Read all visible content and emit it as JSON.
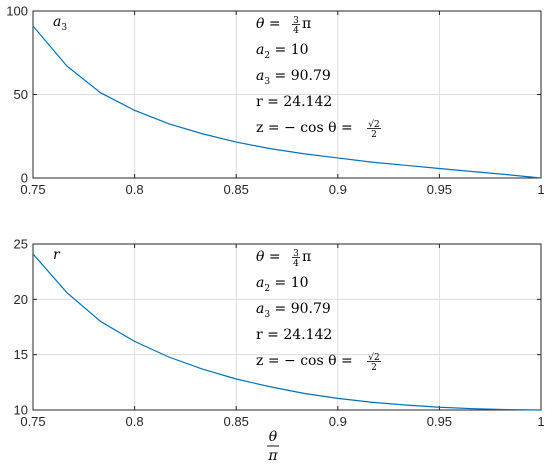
{
  "chart_data": [
    {
      "type": "line",
      "title": "",
      "xlabel": "",
      "ylabel": "",
      "xlim": [
        0.75,
        1
      ],
      "ylim": [
        0,
        100
      ],
      "grid": true,
      "x_ticks": [
        "0.75",
        "0.8",
        "0.85",
        "0.9",
        "0.95",
        "1"
      ],
      "y_ticks": [
        "0",
        "50",
        "100"
      ],
      "x_tick_values": [
        0.75,
        0.8,
        0.85,
        0.9,
        0.95,
        1
      ],
      "y_tick_values": [
        0,
        50,
        100
      ],
      "series": [
        {
          "name": "a3",
          "color": "#0072BD",
          "x": [
            0.75,
            0.7667,
            0.7833,
            0.8,
            0.8167,
            0.8333,
            0.85,
            0.8667,
            0.8833,
            0.9,
            0.9167,
            0.9333,
            0.95,
            0.9667,
            0.9833,
            1.0
          ],
          "y": [
            91,
            67,
            51,
            40.5,
            32.5,
            26.5,
            21.5,
            17.6,
            14.5,
            12,
            9.5,
            7.6,
            5.7,
            3.8,
            2.0,
            0
          ]
        }
      ],
      "annotations": {
        "series_label": {
          "main": "a",
          "sub": "3"
        },
        "theta": {
          "lhs": "θ = ",
          "num": "3",
          "den": "4",
          "rhs": "π"
        },
        "a2": {
          "main": "a",
          "sub": "2",
          "rest": " = 10"
        },
        "a3": {
          "main": "a",
          "sub": "3",
          "rest": " = 90.79"
        },
        "r": {
          "text": "r = 24.142"
        },
        "z": {
          "lhs": "z = − cos θ = ",
          "num": "√2",
          "den": "2"
        }
      }
    },
    {
      "type": "line",
      "title": "",
      "xlabel": "",
      "ylabel": "",
      "xlim": [
        0.75,
        1
      ],
      "ylim": [
        10,
        25
      ],
      "grid": true,
      "x_ticks": [
        "0.75",
        "0.8",
        "0.85",
        "0.9",
        "0.95",
        "1"
      ],
      "y_ticks": [
        "10",
        "15",
        "20",
        "25"
      ],
      "x_tick_values": [
        0.75,
        0.8,
        0.85,
        0.9,
        0.95,
        1
      ],
      "y_tick_values": [
        10,
        15,
        20,
        25
      ],
      "series": [
        {
          "name": "r",
          "color": "#0072BD",
          "x": [
            0.75,
            0.7667,
            0.7833,
            0.8,
            0.8167,
            0.8333,
            0.85,
            0.8667,
            0.8833,
            0.9,
            0.9167,
            0.9333,
            0.95,
            0.9667,
            0.9833,
            1.0
          ],
          "y": [
            24.1,
            20.6,
            18.0,
            16.2,
            14.8,
            13.7,
            12.8,
            12.1,
            11.5,
            11.05,
            10.7,
            10.45,
            10.25,
            10.12,
            10.04,
            10.0
          ]
        }
      ],
      "annotations": {
        "series_label": {
          "main": "r",
          "sub": ""
        },
        "theta": {
          "lhs": "θ = ",
          "num": "3",
          "den": "4",
          "rhs": "π"
        },
        "a2": {
          "main": "a",
          "sub": "2",
          "rest": " = 10"
        },
        "a3": {
          "main": "a",
          "sub": "3",
          "rest": " = 90.79"
        },
        "r": {
          "text": "r = 24.142"
        },
        "z": {
          "lhs": "z = − cos θ = ",
          "num": "√2",
          "den": "2"
        }
      }
    }
  ],
  "shared_xlabel": {
    "num": "θ",
    "den": "π"
  }
}
